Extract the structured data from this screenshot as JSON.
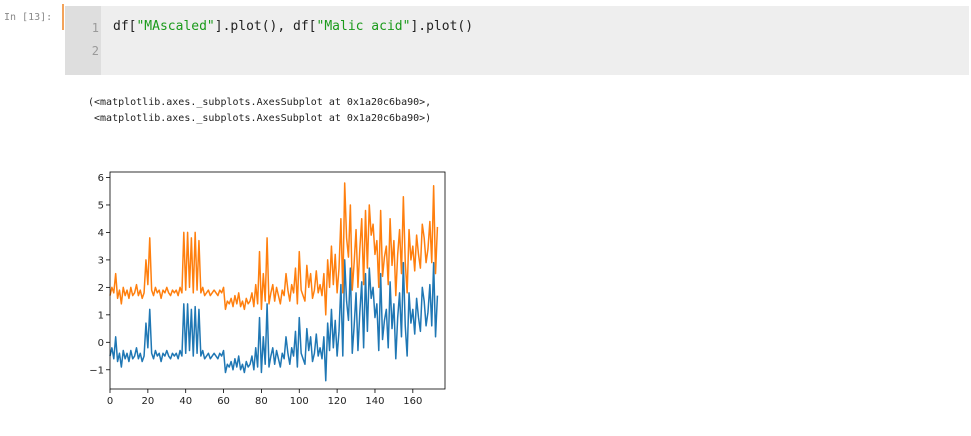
{
  "cell": {
    "prompt": "In [13]:",
    "line_numbers": [
      "1",
      "2"
    ],
    "code": {
      "p1": "df[",
      "s1": "\"MAscaled\"",
      "p2": "].plot(), df[",
      "s2": "\"Malic acid\"",
      "p3": "].plot()"
    }
  },
  "output": {
    "lines": [
      "(<matplotlib.axes._subplots.AxesSubplot at 0x1a20c6ba90>,",
      " <matplotlib.axes._subplots.AxesSubplot at 0x1a20c6ba90>)"
    ]
  },
  "chart_data": {
    "type": "line",
    "x_start": 0,
    "x_step": 1,
    "xlim": [
      0,
      177
    ],
    "ylim": [
      -1.7,
      6.2
    ],
    "xticks": [
      "0",
      "20",
      "40",
      "60",
      "80",
      "100",
      "120",
      "140",
      "160"
    ],
    "yticks": [
      "−1",
      "0",
      "1",
      "2",
      "3",
      "4",
      "5",
      "6"
    ],
    "series": [
      {
        "color": "#1f77b4",
        "values": [
          -0.5,
          -0.2,
          -0.6,
          0.2,
          -0.7,
          -0.4,
          -0.9,
          -0.3,
          -0.6,
          -0.4,
          -0.7,
          -0.3,
          -0.6,
          -0.5,
          -0.2,
          -0.6,
          -0.4,
          -0.7,
          -0.5,
          0.7,
          -0.2,
          1.2,
          -0.4,
          -0.6,
          -0.3,
          -0.5,
          -0.4,
          -0.7,
          -0.4,
          -0.5,
          -0.3,
          -0.5,
          -0.6,
          -0.4,
          -0.5,
          -0.4,
          -0.6,
          -0.3,
          -0.5,
          1.4,
          -0.4,
          1.4,
          -0.3,
          1.2,
          -0.5,
          1.3,
          -0.4,
          1.2,
          -0.5,
          -0.3,
          -0.6,
          -0.5,
          -0.4,
          -0.6,
          -0.5,
          -0.4,
          -0.5,
          -0.6,
          -0.4,
          -0.5,
          -0.3,
          -1.1,
          -0.8,
          -0.9,
          -0.7,
          -1.0,
          -0.6,
          -0.9,
          -0.5,
          -1.0,
          -0.8,
          -1.1,
          -0.7,
          -0.9,
          -0.8,
          -0.5,
          -1.0,
          -0.2,
          -0.9,
          0.9,
          -1.1,
          0.2,
          -0.8,
          1.4,
          -0.9,
          -0.5,
          -0.2,
          -0.8,
          -0.3,
          -0.6,
          -0.9,
          -0.4,
          -0.6,
          0.2,
          -0.4,
          -0.8,
          -0.2,
          -0.5,
          0.4,
          -0.9,
          0.9,
          -0.4,
          -0.6,
          -0.8,
          0.5,
          -0.3,
          0.2,
          -0.7,
          -0.4,
          0.3,
          -0.5,
          -0.2,
          -0.6,
          0.2,
          -1.4,
          0.7,
          -0.3,
          1.2,
          -0.2,
          0.8,
          -0.5,
          0.4,
          2.1,
          -0.5,
          3.0,
          1.5,
          0.8,
          2.7,
          -0.4,
          0.6,
          1.8,
          -0.3,
          1.1,
          2.2,
          -0.2,
          2.5,
          0.4,
          2.7,
          1.6,
          2.0,
          0.9,
          1.4,
          -0.3,
          2.5,
          0.1,
          0.8,
          1.2,
          -0.2,
          2.2,
          0.5,
          1.4,
          -0.6,
          0.9,
          1.8,
          0.2,
          2.9,
          0.6,
          -0.5,
          1.8,
          0.7,
          1.2,
          0.3,
          1.6,
          0.9,
          0.4,
          2.0,
          1.5,
          0.6,
          1.1,
          2.1,
          0.6,
          2.9,
          0.2,
          1.7
        ]
      },
      {
        "color": "#ff7f0e",
        "values": [
          1.7,
          2.0,
          1.8,
          2.5,
          1.6,
          1.9,
          1.4,
          2.0,
          1.7,
          1.9,
          1.6,
          2.0,
          1.7,
          1.8,
          2.1,
          1.7,
          1.9,
          1.6,
          1.8,
          3.0,
          2.1,
          3.8,
          1.9,
          1.7,
          2.0,
          1.8,
          1.9,
          1.6,
          1.9,
          1.8,
          2.0,
          1.8,
          1.7,
          1.9,
          1.8,
          1.9,
          1.7,
          2.0,
          1.8,
          4.0,
          1.9,
          4.0,
          2.0,
          3.8,
          1.8,
          4.0,
          1.9,
          3.7,
          1.8,
          2.0,
          1.7,
          1.8,
          1.9,
          1.7,
          1.8,
          1.9,
          1.8,
          1.7,
          1.9,
          1.8,
          2.0,
          1.2,
          1.5,
          1.4,
          1.6,
          1.3,
          1.7,
          1.4,
          1.8,
          1.3,
          1.5,
          1.2,
          1.6,
          1.4,
          1.5,
          1.8,
          1.3,
          2.1,
          1.4,
          3.3,
          1.2,
          2.5,
          1.5,
          3.8,
          1.4,
          1.8,
          2.1,
          1.5,
          2.0,
          1.7,
          1.4,
          1.9,
          1.7,
          2.5,
          1.9,
          1.5,
          2.1,
          1.8,
          2.7,
          1.4,
          3.3,
          1.9,
          1.7,
          1.5,
          2.8,
          2.0,
          2.5,
          1.6,
          1.9,
          2.6,
          1.8,
          2.1,
          1.7,
          2.5,
          1.0,
          3.0,
          2.0,
          3.5,
          2.1,
          3.2,
          1.8,
          2.7,
          4.5,
          1.8,
          5.8,
          3.8,
          3.1,
          5.0,
          1.9,
          2.9,
          4.1,
          2.0,
          3.4,
          4.5,
          2.1,
          4.8,
          2.7,
          5.0,
          3.9,
          4.3,
          3.2,
          3.7,
          2.0,
          4.8,
          2.4,
          3.1,
          3.5,
          2.1,
          4.5,
          2.8,
          3.7,
          1.7,
          3.2,
          4.1,
          2.5,
          5.3,
          2.9,
          1.8,
          4.1,
          3.0,
          3.5,
          2.6,
          3.9,
          3.2,
          2.7,
          4.3,
          3.8,
          2.9,
          3.4,
          4.4,
          2.9,
          5.7,
          2.5,
          4.2
        ]
      }
    ]
  }
}
